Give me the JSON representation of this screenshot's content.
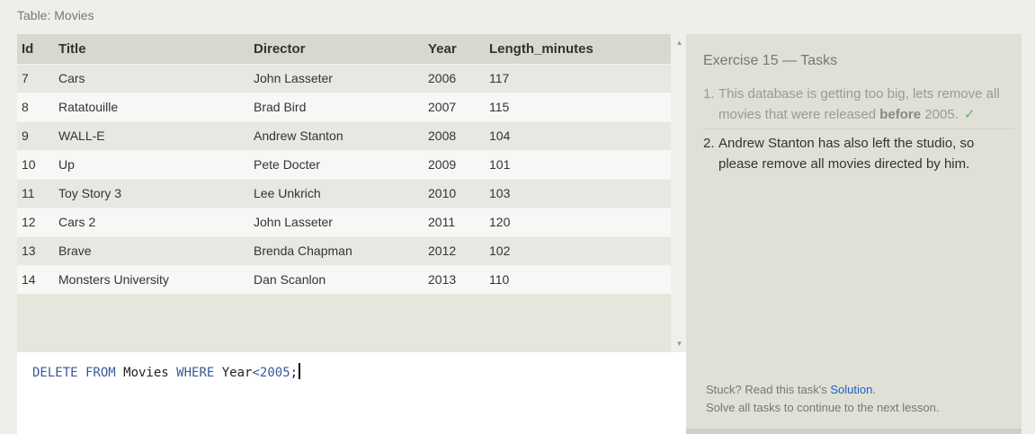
{
  "table": {
    "caption": "Table: Movies",
    "columns": [
      "Id",
      "Title",
      "Director",
      "Year",
      "Length_minutes"
    ],
    "rows": [
      [
        "7",
        "Cars",
        "John Lasseter",
        "2006",
        "117"
      ],
      [
        "8",
        "Ratatouille",
        "Brad Bird",
        "2007",
        "115"
      ],
      [
        "9",
        "WALL-E",
        "Andrew Stanton",
        "2008",
        "104"
      ],
      [
        "10",
        "Up",
        "Pete Docter",
        "2009",
        "101"
      ],
      [
        "11",
        "Toy Story 3",
        "Lee Unkrich",
        "2010",
        "103"
      ],
      [
        "12",
        "Cars 2",
        "John Lasseter",
        "2011",
        "120"
      ],
      [
        "13",
        "Brave",
        "Brenda Chapman",
        "2012",
        "102"
      ],
      [
        "14",
        "Monsters University",
        "Dan Scanlon",
        "2013",
        "110"
      ]
    ]
  },
  "scrollbar": {
    "up_icon": "▲",
    "down_icon": "▼"
  },
  "editor": {
    "tokens": {
      "kw1": "DELETE FROM",
      "table": " Movies ",
      "kw2": "WHERE",
      "col": " Year",
      "op": "<",
      "num": "2005",
      "end": ";"
    }
  },
  "tasks": {
    "title": "Exercise 15 — Tasks",
    "items": [
      {
        "number": "1.",
        "text_before": "This database is getting too big, lets remove all movies that were released ",
        "bold": "before",
        "text_after": " 2005.",
        "check": "✓"
      },
      {
        "number": "2.",
        "text": "Andrew Stanton has also left the studio, so please remove all movies directed by him."
      }
    ],
    "stuck_prefix": "Stuck? Read this task's ",
    "solution_link": "Solution",
    "stuck_suffix": ".",
    "continue_text": "Solve all tasks to continue to the next lesson."
  },
  "colors": {
    "keyword": "#3a5a9a",
    "link": "#1a62c9",
    "check": "#6cb56c"
  }
}
